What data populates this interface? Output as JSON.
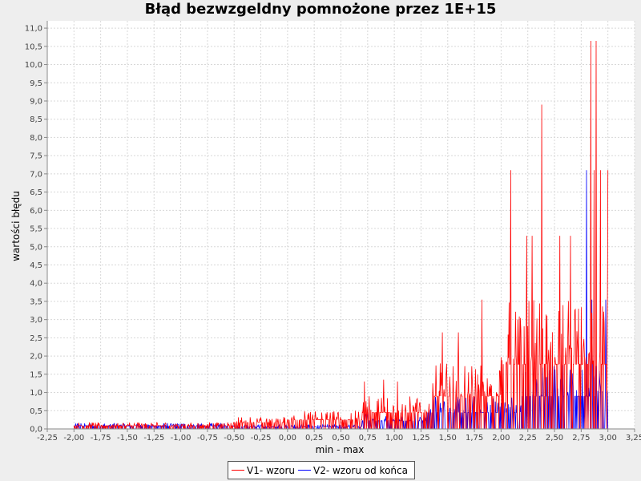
{
  "title": "Błąd bezwzgeldny pomnożone przez 1E+15",
  "chart_data": {
    "type": "line",
    "title": "Błąd bezwzgeldny pomnożone przez 1E+15",
    "xlabel": "min - max",
    "ylabel": "wartości błędu",
    "xlim": [
      -2.25,
      3.25
    ],
    "ylim": [
      0,
      11.2
    ],
    "x_ticks": [
      "-2,25",
      "-2,00",
      "-1,75",
      "-1,50",
      "-1,25",
      "-1,00",
      "-0,75",
      "-0,50",
      "-0,25",
      "0,00",
      "0,25",
      "0,50",
      "0,75",
      "1,00",
      "1,25",
      "1,50",
      "1,75",
      "2,00",
      "2,25",
      "2,50",
      "2,75",
      "3,00",
      "3,25"
    ],
    "y_ticks": [
      "0,0",
      "0,5",
      "1,0",
      "1,5",
      "2,0",
      "2,5",
      "3,0",
      "3,5",
      "4,0",
      "4,5",
      "5,0",
      "5,5",
      "6,0",
      "6,5",
      "7,0",
      "7,5",
      "8,0",
      "8,5",
      "9,0",
      "9,5",
      "10,0",
      "10,5",
      "11,0"
    ],
    "grid": true,
    "legend_position": "bottom",
    "x_domain": [
      -2.0,
      3.0
    ],
    "series": [
      {
        "name": "V1- wzoru",
        "color": "#ff0000",
        "peaks": [
          {
            "x": 0.72,
            "y": 1.3
          },
          {
            "x": 0.9,
            "y": 1.35
          },
          {
            "x": 1.03,
            "y": 1.3
          },
          {
            "x": 1.45,
            "y": 2.65
          },
          {
            "x": 1.6,
            "y": 2.65
          },
          {
            "x": 1.82,
            "y": 3.55
          },
          {
            "x": 2.09,
            "y": 7.1
          },
          {
            "x": 2.24,
            "y": 5.3
          },
          {
            "x": 2.29,
            "y": 5.3
          },
          {
            "x": 2.38,
            "y": 8.9
          },
          {
            "x": 2.55,
            "y": 5.3
          },
          {
            "x": 2.65,
            "y": 5.3
          },
          {
            "x": 2.84,
            "y": 10.65
          },
          {
            "x": 2.89,
            "y": 10.65
          },
          {
            "x": 2.87,
            "y": 7.1
          },
          {
            "x": 2.93,
            "y": 7.1
          },
          {
            "x": 3.0,
            "y": 7.1
          }
        ]
      },
      {
        "name": "V2- wzoru od końca",
        "color": "#0000ff",
        "peaks": [
          {
            "x": 2.8,
            "y": 7.1
          },
          {
            "x": 2.85,
            "y": 3.55
          },
          {
            "x": 2.98,
            "y": 3.55
          }
        ]
      }
    ]
  }
}
